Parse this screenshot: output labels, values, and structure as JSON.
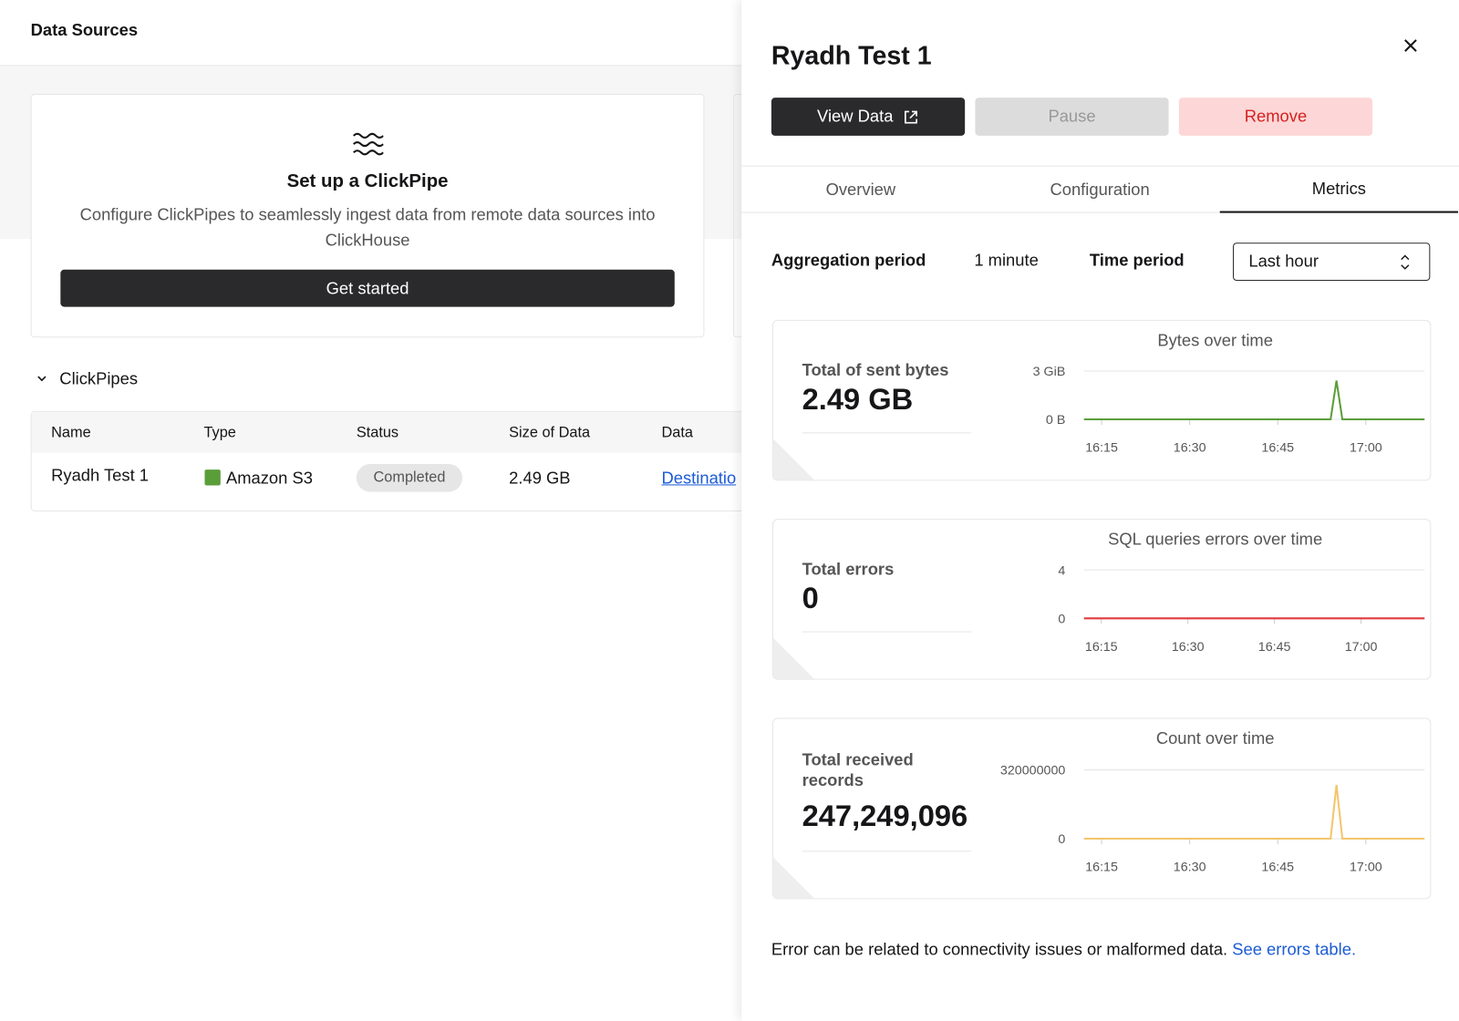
{
  "left": {
    "header": "Data Sources",
    "setup": {
      "title": "Set up a ClickPipe",
      "description": "Configure ClickPipes to seamlessly ingest data from remote data sources into ClickHouse",
      "button": "Get started"
    },
    "section": "ClickPipes",
    "table": {
      "columns": [
        "Name",
        "Type",
        "Status",
        "Size of Data",
        "Data"
      ],
      "rows": [
        [
          "Ryadh Test 1",
          "Amazon S3",
          "Completed",
          "2.49 GB",
          "Destinatio"
        ]
      ]
    }
  },
  "panel": {
    "title": "Ryadh Test 1",
    "buttons": [
      "View Data",
      "Pause",
      "Remove"
    ],
    "tabs": [
      "Overview",
      "Configuration",
      "Metrics"
    ],
    "active_tab": 2,
    "filters": {
      "aggregation_label": "Aggregation period",
      "aggregation_value": "1 minute",
      "time_label": "Time period",
      "time_value": "Last hour"
    },
    "metrics": [
      {
        "label": "Total of sent bytes",
        "value": "2.49 GB",
        "chart": {
          "type": "line",
          "title": "Bytes over time",
          "color": "#5a9e3a",
          "x": [
            "16:12",
            "16:54",
            "16:55",
            "16:56",
            "17:10"
          ],
          "values": [
            0,
            0,
            2.4,
            0,
            0
          ],
          "xlim": [
            "16:12",
            "17:10"
          ],
          "ylim": [
            0,
            3
          ],
          "xticks": [
            "16:15",
            "16:30",
            "16:45",
            "17:00"
          ],
          "yticks": [
            {
              "value": 0,
              "label": "0 B"
            },
            {
              "value": 3,
              "label": "3 GiB"
            }
          ]
        }
      },
      {
        "label": "Total errors",
        "value": "0",
        "chart": {
          "type": "line",
          "title": "SQL queries errors over time",
          "color": "#e0393e",
          "x": [
            "16:12",
            "17:11"
          ],
          "values": [
            0,
            0
          ],
          "xlim": [
            "16:12",
            "17:11"
          ],
          "ylim": [
            0,
            4
          ],
          "xticks": [
            "16:15",
            "16:30",
            "16:45",
            "17:00"
          ],
          "yticks": [
            0,
            4
          ]
        }
      },
      {
        "label": "Total received records",
        "value": "247,249,096",
        "chart": {
          "type": "line",
          "title": "Count over time",
          "color": "#f5c46b",
          "x": [
            "16:12",
            "16:54",
            "16:55",
            "16:56",
            "17:10"
          ],
          "values": [
            0,
            0,
            250000000,
            0,
            0
          ],
          "xlim": [
            "16:12",
            "17:10"
          ],
          "ylim": [
            0,
            320000000
          ],
          "xticks": [
            "16:15",
            "16:30",
            "16:45",
            "17:00"
          ],
          "yticks": [
            0,
            320000000
          ]
        }
      }
    ],
    "footer": {
      "text": "Error can be related to connectivity issues or malformed data.",
      "link": "See errors table."
    }
  }
}
